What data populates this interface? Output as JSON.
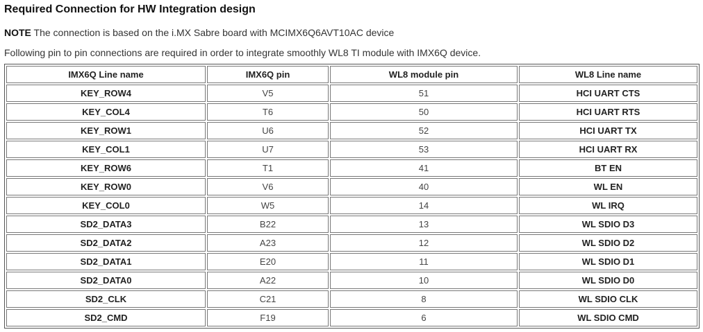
{
  "title": "Required Connection for HW Integration design",
  "note": {
    "label": "NOTE",
    "text": " The connection is based on the i.MX Sabre board with MCIMX6Q6AVT10AC device"
  },
  "intro": "Following pin to pin connections are required in order to integrate smoothly WL8 TI module with IMX6Q device.",
  "table": {
    "headers": [
      "IMX6Q Line name",
      "IMX6Q pin",
      "WL8 module pin",
      "WL8 Line name"
    ],
    "rows": [
      [
        "KEY_ROW4",
        "V5",
        "51",
        "HCI UART CTS"
      ],
      [
        "KEY_COL4",
        "T6",
        "50",
        "HCI UART RTS"
      ],
      [
        "KEY_ROW1",
        "U6",
        "52",
        "HCI UART TX"
      ],
      [
        "KEY_COL1",
        "U7",
        "53",
        "HCI UART RX"
      ],
      [
        "KEY_ROW6",
        "T1",
        "41",
        "BT EN"
      ],
      [
        "KEY_ROW0",
        "V6",
        "40",
        "WL EN"
      ],
      [
        "KEY_COL0",
        "W5",
        "14",
        "WL IRQ"
      ],
      [
        "SD2_DATA3",
        "B22",
        "13",
        "WL SDIO D3"
      ],
      [
        "SD2_DATA2",
        "A23",
        "12",
        "WL SDIO D2"
      ],
      [
        "SD2_DATA1",
        "E20",
        "11",
        "WL SDIO D1"
      ],
      [
        "SD2_DATA0",
        "A22",
        "10",
        "WL SDIO D0"
      ],
      [
        "SD2_CLK",
        "C21",
        "8",
        "WL SDIO CLK"
      ],
      [
        "SD2_CMD",
        "F19",
        "6",
        "WL SDIO CMD"
      ]
    ]
  }
}
